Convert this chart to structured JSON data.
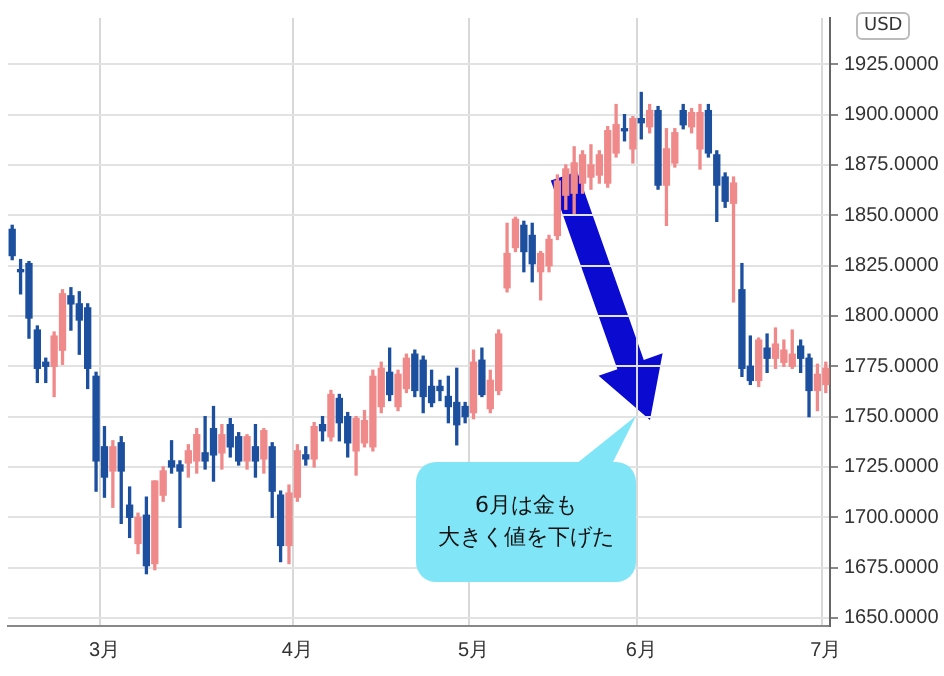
{
  "chart_data": {
    "type": "candlestick",
    "categories": [
      null,
      null,
      null,
      null,
      null,
      null,
      null,
      null,
      null,
      null,
      null,
      "3月",
      null,
      null,
      null,
      null,
      null,
      null,
      null,
      null,
      null,
      null,
      null,
      null,
      null,
      null,
      null,
      null,
      null,
      null,
      null,
      null,
      null,
      null,
      "4月",
      null,
      null,
      null,
      null,
      null,
      null,
      null,
      null,
      null,
      null,
      null,
      null,
      null,
      null,
      null,
      null,
      null,
      null,
      null,
      null,
      "5月",
      null,
      null,
      null,
      null,
      null,
      null,
      null,
      null,
      null,
      null,
      null,
      null,
      null,
      null,
      null,
      null,
      null,
      null,
      null,
      "6月",
      null,
      null,
      null,
      null,
      null,
      null,
      null,
      null,
      null,
      null,
      null,
      null,
      null,
      null,
      null,
      null,
      null,
      null,
      null,
      null,
      null,
      "7月"
    ],
    "ohlc": [
      [
        1843,
        1845,
        1828,
        1830
      ],
      [
        1823,
        1828,
        1811,
        1822
      ],
      [
        1826,
        1827,
        1789,
        1799
      ],
      [
        1793,
        1795,
        1767,
        1774
      ],
      [
        1777,
        1779,
        1767,
        1775
      ],
      [
        1775,
        1792,
        1760,
        1790
      ],
      [
        1783,
        1813,
        1776,
        1811
      ],
      [
        1810,
        1814,
        1793,
        1806
      ],
      [
        1806,
        1812,
        1781,
        1798
      ],
      [
        1804,
        1806,
        1764,
        1774
      ],
      [
        1770,
        1772,
        1713,
        1728
      ],
      [
        1735,
        1745,
        1710,
        1720
      ],
      [
        1723,
        1738,
        1705,
        1735
      ],
      [
        1737,
        1740,
        1697,
        1723
      ],
      [
        1706,
        1715,
        1690,
        1700
      ],
      [
        1687,
        1702,
        1682,
        1700
      ],
      [
        1701,
        1710,
        1672,
        1676
      ],
      [
        1677,
        1718,
        1674,
        1718
      ],
      [
        1711,
        1725,
        1708,
        1723
      ],
      [
        1728,
        1738,
        1722,
        1725
      ],
      [
        1726,
        1728,
        1695,
        1723
      ],
      [
        1727,
        1736,
        1720,
        1733
      ],
      [
        1728,
        1744,
        1722,
        1741
      ],
      [
        1732,
        1750,
        1724,
        1728
      ],
      [
        1744,
        1755,
        1718,
        1731
      ],
      [
        1732,
        1746,
        1724,
        1741
      ],
      [
        1746,
        1749,
        1730,
        1735
      ],
      [
        1740,
        1742,
        1726,
        1728
      ],
      [
        1728,
        1741,
        1724,
        1740
      ],
      [
        1735,
        1746,
        1720,
        1728
      ],
      [
        1729,
        1744,
        1722,
        1743
      ],
      [
        1735,
        1737,
        1700,
        1713
      ],
      [
        1711,
        1713,
        1678,
        1686
      ],
      [
        1686,
        1716,
        1677,
        1712
      ],
      [
        1710,
        1736,
        1708,
        1733
      ],
      [
        1731,
        1735,
        1726,
        1729
      ],
      [
        1729,
        1747,
        1725,
        1745
      ],
      [
        1746,
        1750,
        1738,
        1743
      ],
      [
        1740,
        1763,
        1738,
        1761
      ],
      [
        1759,
        1761,
        1738,
        1747
      ],
      [
        1750,
        1752,
        1730,
        1737
      ],
      [
        1733,
        1750,
        1721,
        1749
      ],
      [
        1737,
        1753,
        1735,
        1748
      ],
      [
        1735,
        1773,
        1733,
        1770
      ],
      [
        1755,
        1777,
        1752,
        1774
      ],
      [
        1772,
        1784,
        1758,
        1761
      ],
      [
        1755,
        1773,
        1753,
        1771
      ],
      [
        1764,
        1781,
        1762,
        1779
      ],
      [
        1781,
        1783,
        1760,
        1763
      ],
      [
        1778,
        1780,
        1752,
        1760
      ],
      [
        1765,
        1773,
        1755,
        1757
      ],
      [
        1765,
        1768,
        1758,
        1763
      ],
      [
        1760,
        1770,
        1747,
        1755
      ],
      [
        1757,
        1774,
        1736,
        1746
      ],
      [
        1755,
        1757,
        1747,
        1750
      ],
      [
        1752,
        1783,
        1749,
        1777
      ],
      [
        1778,
        1784,
        1760,
        1761
      ],
      [
        1754,
        1773,
        1752,
        1768
      ],
      [
        1763,
        1793,
        1761,
        1791
      ],
      [
        1814,
        1846,
        1812,
        1831
      ],
      [
        1834,
        1849,
        1832,
        1848
      ],
      [
        1845,
        1847,
        1822,
        1832
      ],
      [
        1840,
        1846,
        1817,
        1826
      ],
      [
        1822,
        1832,
        1808,
        1831
      ],
      [
        1825,
        1840,
        1822,
        1838
      ],
      [
        1840,
        1870,
        1838,
        1867
      ],
      [
        1860,
        1875,
        1853,
        1873
      ],
      [
        1861,
        1884,
        1851,
        1876
      ],
      [
        1866,
        1882,
        1861,
        1880
      ],
      [
        1869,
        1885,
        1863,
        1875
      ],
      [
        1870,
        1882,
        1866,
        1880
      ],
      [
        1866,
        1894,
        1864,
        1892
      ],
      [
        1881,
        1905,
        1879,
        1895
      ],
      [
        1893,
        1900,
        1887,
        1892
      ],
      [
        1883,
        1899,
        1876,
        1898
      ],
      [
        1898,
        1911,
        1888,
        1896
      ],
      [
        1894,
        1905,
        1891,
        1902
      ],
      [
        1902,
        1904,
        1863,
        1865
      ],
      [
        1865,
        1893,
        1845,
        1883
      ],
      [
        1876,
        1893,
        1874,
        1891
      ],
      [
        1902,
        1905,
        1893,
        1895
      ],
      [
        1894,
        1903,
        1891,
        1901
      ],
      [
        1883,
        1905,
        1873,
        1901
      ],
      [
        1902,
        1905,
        1879,
        1881
      ],
      [
        1880,
        1882,
        1847,
        1865
      ],
      [
        1869,
        1871,
        1854,
        1857
      ],
      [
        1856,
        1869,
        1807,
        1866
      ],
      [
        1813,
        1826,
        1770,
        1774
      ],
      [
        1775,
        1790,
        1766,
        1768
      ],
      [
        1768,
        1789,
        1765,
        1788
      ],
      [
        1784,
        1791,
        1772,
        1779
      ],
      [
        1779,
        1794,
        1774,
        1786
      ],
      [
        1777,
        1788,
        1775,
        1783
      ],
      [
        1775,
        1793,
        1774,
        1781
      ],
      [
        1785,
        1788,
        1772,
        1779
      ],
      [
        1779,
        1781,
        1750,
        1763
      ],
      [
        1763,
        1776,
        1753,
        1771
      ],
      [
        1766,
        1777,
        1762,
        1774
      ]
    ],
    "ylabel": "USD",
    "ylim": [
      1646,
      1948
    ],
    "yticks": [
      {
        "value": 1650,
        "label": "1650.0000"
      },
      {
        "value": 1675,
        "label": "1675.0000"
      },
      {
        "value": 1700,
        "label": "1700.0000"
      },
      {
        "value": 1725,
        "label": "1725.0000"
      },
      {
        "value": 1750,
        "label": "1750.0000"
      },
      {
        "value": 1775,
        "label": "1775.0000"
      },
      {
        "value": 1800,
        "label": "1800.0000"
      },
      {
        "value": 1825,
        "label": "1825.0000"
      },
      {
        "value": 1850,
        "label": "1850.0000"
      },
      {
        "value": 1875,
        "label": "1875.0000"
      },
      {
        "value": 1900,
        "label": "1900.0000"
      },
      {
        "value": 1925,
        "label": "1925.0000"
      }
    ],
    "grid": true,
    "annotations": [
      "6月は金も",
      "大きく値を下げた"
    ]
  }
}
